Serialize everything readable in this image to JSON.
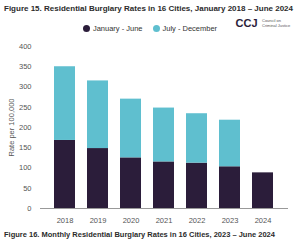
{
  "chart_data": {
    "type": "bar",
    "title": "Figure 15. Residential Burglary Rates in 16 Cities, January 2018 – June 2024",
    "caption": "Figure 16. Monthly Residential Burglary Rates in 16 Cities, 2023 – June 2024",
    "annotations": [
      "CCJ",
      "Council on Criminal Justice"
    ],
    "y_label": "Rate per 100,000",
    "categories": [
      "2018",
      "2019",
      "2020",
      "2021",
      "2022",
      "2023",
      "2024"
    ],
    "series": [
      {
        "name": "January - June",
        "color": "#2b1d3a",
        "values": [
          168,
          148,
          125,
          115,
          112,
          103,
          88
        ]
      },
      {
        "name": "July - December",
        "color": "#5fbfcf",
        "values": [
          182,
          167,
          145,
          133,
          122,
          115,
          null
        ]
      }
    ],
    "stacked": true,
    "ylim": [
      0,
      400
    ],
    "yticks": [
      0,
      50,
      100,
      150,
      200,
      250,
      300,
      350,
      400
    ],
    "grid": false,
    "legend": "top"
  }
}
